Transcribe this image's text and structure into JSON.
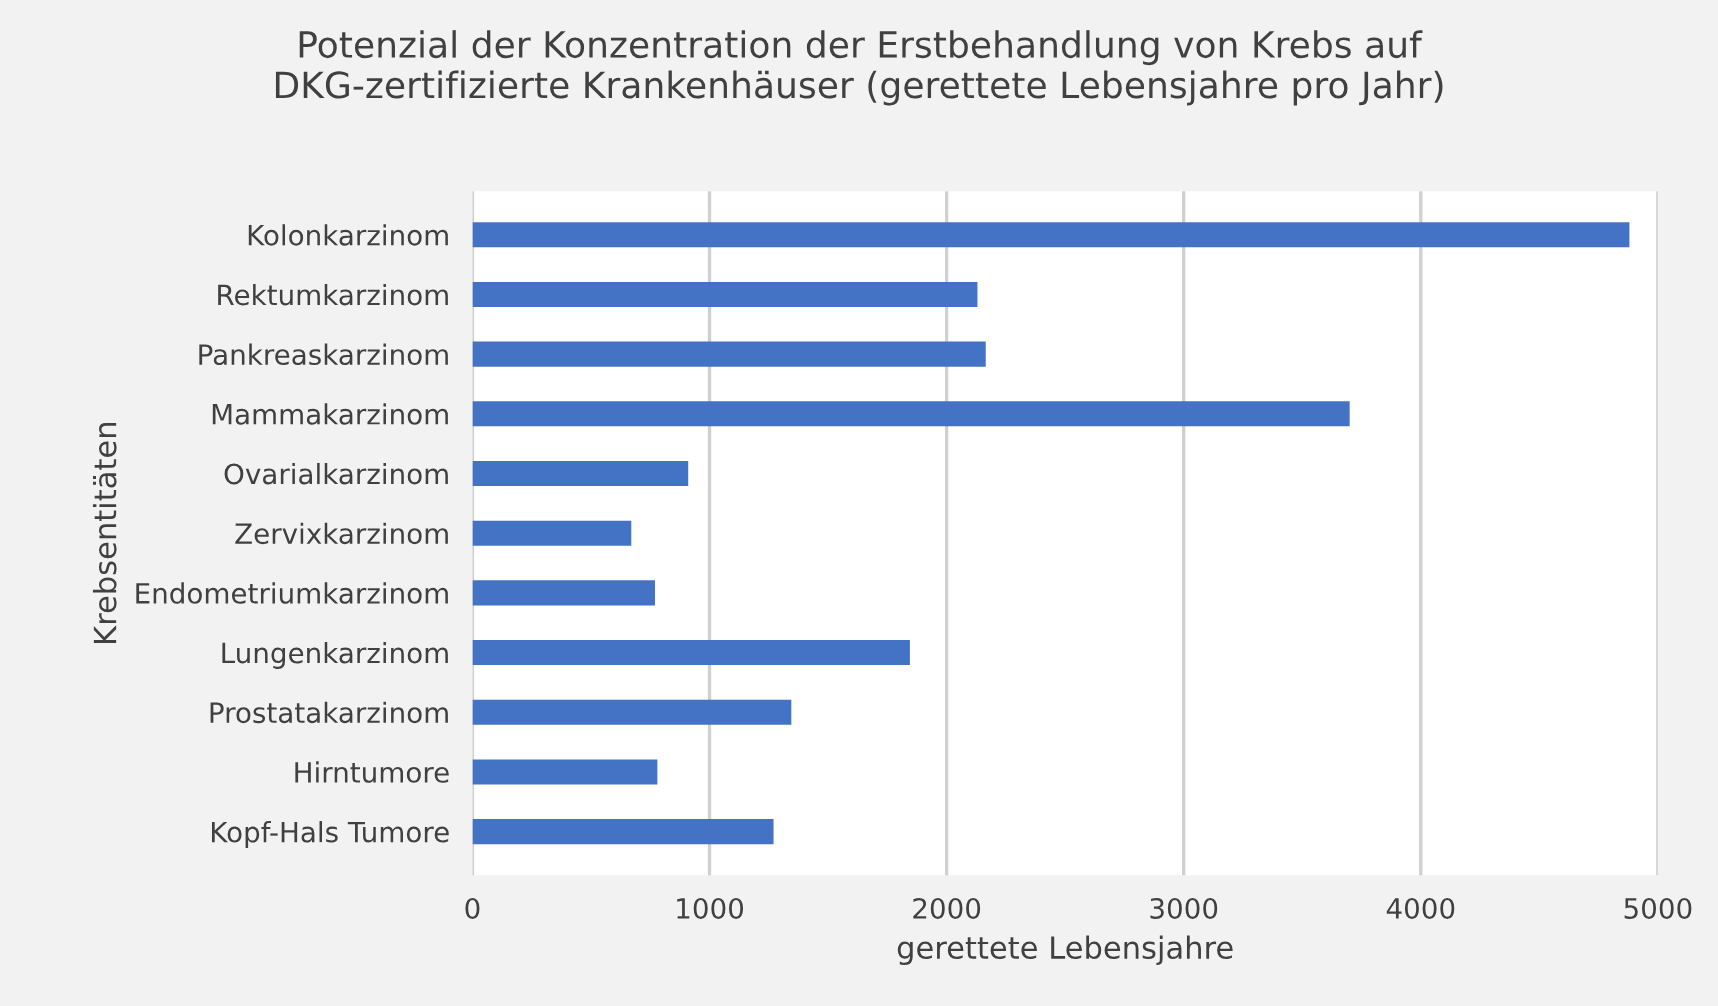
{
  "chart_data": {
    "type": "bar",
    "orientation": "horizontal",
    "title": "Potenzial der Konzentration der Erstbehandlung von Krebs auf\nDKG-zertifizierte Krankenhäuser (gerettete Lebensjahre pro Jahr)",
    "xlabel": "gerettete Lebensjahre",
    "ylabel": "Krebsentitäten",
    "categories": [
      "Kolonkarzinom",
      "Rektumkarzinom",
      "Pankreaskarzinom",
      "Mammakarzinom",
      "Ovarialkarzinom",
      "Zervixkarzinom",
      "Endometriumkarzinom",
      "Lungenkarzinom",
      "Prostatakarzinom",
      "Hirntumore",
      "Kopf-Hals Tumore"
    ],
    "values": [
      4880,
      2130,
      2165,
      3700,
      910,
      670,
      770,
      1845,
      1345,
      780,
      1270
    ],
    "color": "#4472c4",
    "xlim": [
      0,
      5000
    ],
    "xticks": [
      0,
      1000,
      2000,
      3000,
      4000,
      5000
    ],
    "grid": "x",
    "legend": false
  }
}
